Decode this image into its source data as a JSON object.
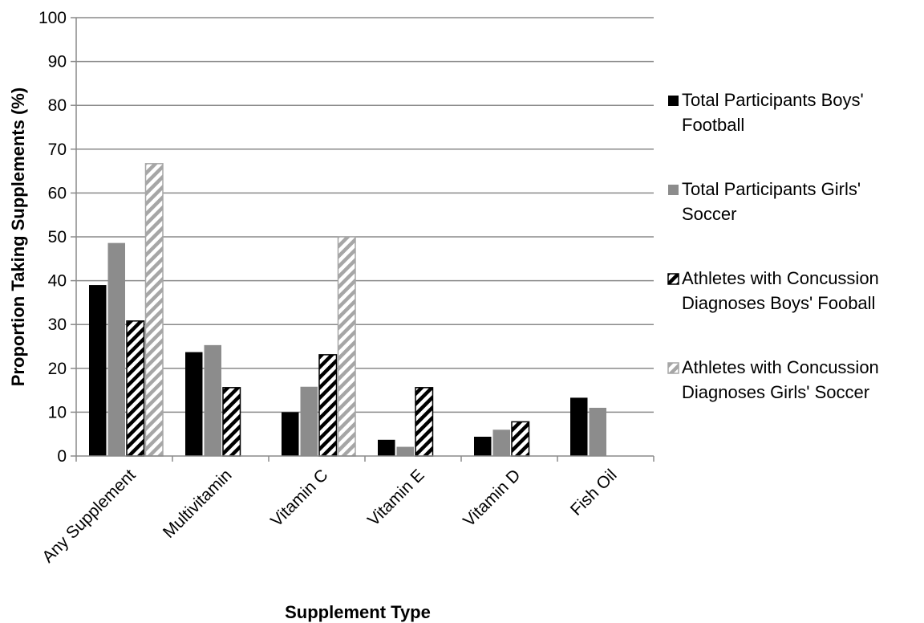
{
  "chart_data": {
    "type": "bar",
    "xlabel": "Supplement Type",
    "ylabel": "Proportion Taking Supplements (%)",
    "ylim": [
      0,
      100
    ],
    "yticks": [
      0,
      10,
      20,
      30,
      40,
      50,
      60,
      70,
      80,
      90,
      100
    ],
    "grid": true,
    "legend_position": "right",
    "categories": [
      "Any Supplement",
      "Multivitamin",
      "Vitamin C",
      "Vitamin E",
      "Vitamin D",
      "Fish Oil"
    ],
    "series": [
      {
        "name": "Total Participants Boys' Football",
        "fill": "#000000",
        "pattern": "solid",
        "values": [
          39,
          23.7,
          10,
          3.7,
          4.4,
          13.3
        ]
      },
      {
        "name": "Total Participants Girls' Soccer",
        "fill": "#8c8c8c",
        "pattern": "solid",
        "values": [
          48.6,
          25.3,
          15.8,
          2.1,
          6,
          11
        ]
      },
      {
        "name": "Athletes with Concussion Diagnoses Boys' Fooball",
        "fill": "#000000",
        "pattern": "hatch-dark",
        "values": [
          30.8,
          15.6,
          23.1,
          15.6,
          7.8,
          0
        ]
      },
      {
        "name": "Athletes with Concussion Diagnoses Girls' Soccer",
        "fill": "#a6a6a6",
        "pattern": "hatch-light",
        "values": [
          66.7,
          0,
          50,
          0,
          0,
          0
        ]
      }
    ]
  }
}
